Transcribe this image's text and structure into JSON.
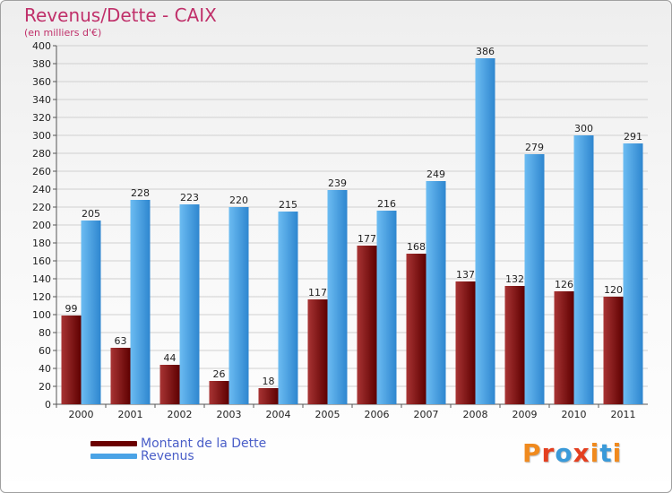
{
  "title": "Revenus/Dette - CAIX",
  "subtitle": "(en milliers d'€)",
  "legend": [
    {
      "label": "Montant de la Dette",
      "color": "#6b0000"
    },
    {
      "label": "Revenus",
      "color": "#4aa3e6"
    }
  ],
  "logo": {
    "text": "Proxiti",
    "letter_colors": [
      "#f08a1e",
      "#e43f1f",
      "#3a9ad9",
      "#e43f1f",
      "#f08a1e",
      "#3a9ad9",
      "#f08a1e"
    ]
  },
  "chart_data": {
    "type": "bar",
    "categories": [
      "2000",
      "2001",
      "2002",
      "2003",
      "2004",
      "2005",
      "2006",
      "2007",
      "2008",
      "2009",
      "2010",
      "2011"
    ],
    "series": [
      {
        "name": "Montant de la Dette",
        "color": "#6b0000",
        "values": [
          99,
          63,
          44,
          26,
          18,
          117,
          177,
          168,
          137,
          132,
          126,
          120
        ]
      },
      {
        "name": "Revenus",
        "color": "#4aa3e6",
        "values": [
          205,
          228,
          223,
          220,
          215,
          239,
          216,
          249,
          386,
          279,
          300,
          291
        ]
      }
    ],
    "ylim": [
      0,
      400
    ],
    "yticks": [
      0,
      20,
      40,
      60,
      80,
      100,
      120,
      140,
      160,
      180,
      200,
      220,
      240,
      260,
      280,
      300,
      320,
      340,
      360,
      380,
      400
    ],
    "grid": true,
    "legend_position": "bottom-left"
  }
}
